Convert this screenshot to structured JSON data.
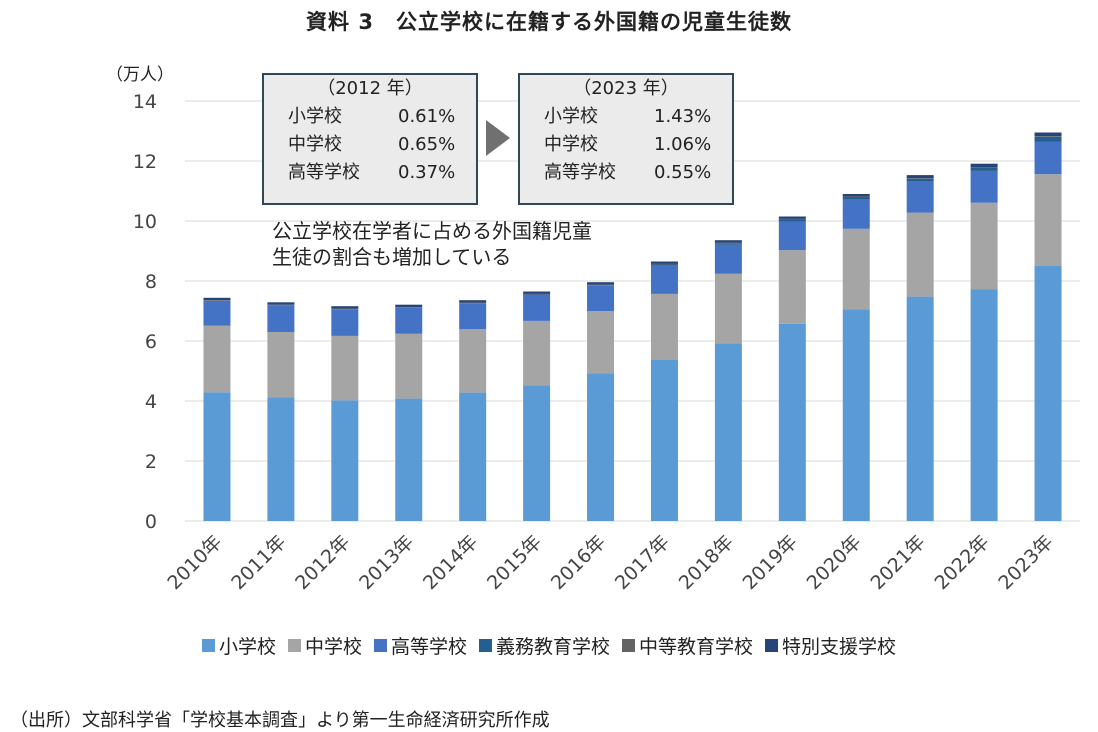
{
  "title": "資料 3　公立学校に在籍する外国籍の児童生徒数",
  "unit_label": "（万人）",
  "box_2012": {
    "header": "（2012 年）",
    "rows": [
      {
        "label": "小学校",
        "value": "0.61%"
      },
      {
        "label": "中学校",
        "value": "0.65%"
      },
      {
        "label": "高等学校",
        "value": "0.37%"
      }
    ]
  },
  "box_2023": {
    "header": "（2023 年）",
    "rows": [
      {
        "label": "小学校",
        "value": "1.43%"
      },
      {
        "label": "中学校",
        "value": "1.06%"
      },
      {
        "label": "高等学校",
        "value": "0.55%"
      }
    ]
  },
  "annotation": {
    "line1": "公立学校在学者に占める外国籍児童",
    "line2": "生徒の割合も増加している"
  },
  "source": "（出所）文部科学省「学校基本調査」より第一生命経済研究所作成",
  "chart_data": {
    "type": "bar",
    "stacked": true,
    "title": "資料 3　公立学校に在籍する外国籍の児童生徒数",
    "ylabel": "（万人）",
    "ylim": [
      0,
      14
    ],
    "yticks": [
      0,
      2,
      4,
      6,
      8,
      10,
      12,
      14
    ],
    "grid": true,
    "legend_position": "bottom",
    "categories": [
      "2010年",
      "2011年",
      "2012年",
      "2013年",
      "2014年",
      "2015年",
      "2016年",
      "2017年",
      "2018年",
      "2019年",
      "2020年",
      "2021年",
      "2022年",
      "2023年"
    ],
    "series": [
      {
        "name": "小学校",
        "color": "#5b9bd5",
        "values": [
          4.29,
          4.12,
          4.02,
          4.08,
          4.28,
          4.52,
          4.92,
          5.38,
          5.92,
          6.57,
          7.06,
          7.48,
          7.73,
          8.5
        ]
      },
      {
        "name": "中学校",
        "color": "#a5a5a5",
        "values": [
          2.22,
          2.18,
          2.15,
          2.16,
          2.12,
          2.15,
          2.08,
          2.19,
          2.32,
          2.46,
          2.68,
          2.8,
          2.88,
          3.06
        ]
      },
      {
        "name": "高等学校",
        "color": "#4472c4",
        "values": [
          0.83,
          0.89,
          0.89,
          0.87,
          0.86,
          0.88,
          0.84,
          0.94,
          0.97,
          0.95,
          0.98,
          1.04,
          1.06,
          1.09
        ]
      },
      {
        "name": "義務教育学校",
        "color": "#255e91",
        "values": [
          0,
          0,
          0,
          0,
          0,
          0,
          0.02,
          0.04,
          0.05,
          0.07,
          0.08,
          0.09,
          0.11,
          0.16
        ]
      },
      {
        "name": "中等教育学校",
        "color": "#636363",
        "values": [
          0.02,
          0.02,
          0.02,
          0.02,
          0.02,
          0.02,
          0.02,
          0.02,
          0.02,
          0.02,
          0.02,
          0.02,
          0.02,
          0.02
        ]
      },
      {
        "name": "特別支援学校",
        "color": "#264478",
        "values": [
          0.08,
          0.08,
          0.08,
          0.08,
          0.08,
          0.08,
          0.08,
          0.08,
          0.08,
          0.08,
          0.08,
          0.1,
          0.11,
          0.12
        ]
      }
    ]
  }
}
